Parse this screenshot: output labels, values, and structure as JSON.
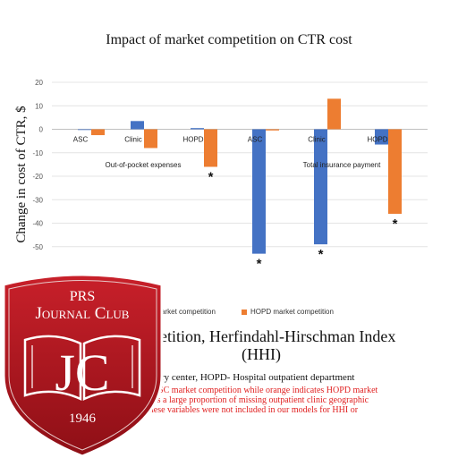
{
  "chart_data": {
    "type": "bar",
    "title": "Impact of market competition on CTR cost",
    "ylabel": "Change in cost of CTR, $",
    "ylim": [
      -60,
      20
    ],
    "yticks": [
      20,
      10,
      0,
      -10,
      -20,
      -30,
      -40,
      -50
    ],
    "grid": true,
    "groups": [
      {
        "label": "Out-of-pocket expenses",
        "categories": [
          {
            "label": "ASC",
            "asc": 0,
            "hopd": -2.5,
            "star": ""
          },
          {
            "label": "Clinic",
            "asc": 3.5,
            "hopd": -8,
            "star": ""
          },
          {
            "label": "HOPD",
            "asc": 0.5,
            "hopd": -16,
            "star": "*"
          }
        ]
      },
      {
        "label": "Total insurance payment",
        "categories": [
          {
            "label": "ASC",
            "asc": -53,
            "hopd": -0.5,
            "star": "*"
          },
          {
            "label": "Clinic",
            "asc": -49,
            "hopd": 13,
            "star": "*"
          },
          {
            "label": "HOPD",
            "asc": -6.5,
            "hopd": -36,
            "star": "*"
          }
        ]
      }
    ],
    "legend": [
      {
        "name": "ASC market competition",
        "color": "#4472c4"
      },
      {
        "name": "HOPD market competition",
        "color": "#ed7d31"
      }
    ],
    "legend_visible": [
      "arket competition",
      "HOPD market competition"
    ]
  },
  "figure": {
    "subtitle_line1": "petition, Herfindahl-Hirschman Index",
    "subtitle_line2": "(HHI)",
    "abbrev": "ry center, HOPD- Hospital outpatient department",
    "note_lines": [
      "s ASC market competition while orange indicates HOPD market",
      "was a large proportion of missing outpatient clinic geographic",
      "these variables were not included in our models for HHI or"
    ]
  },
  "badge": {
    "line1": "PRS",
    "line2": "Journal Club",
    "monogram": "JC",
    "year": "1946",
    "color": "#b3151b"
  }
}
